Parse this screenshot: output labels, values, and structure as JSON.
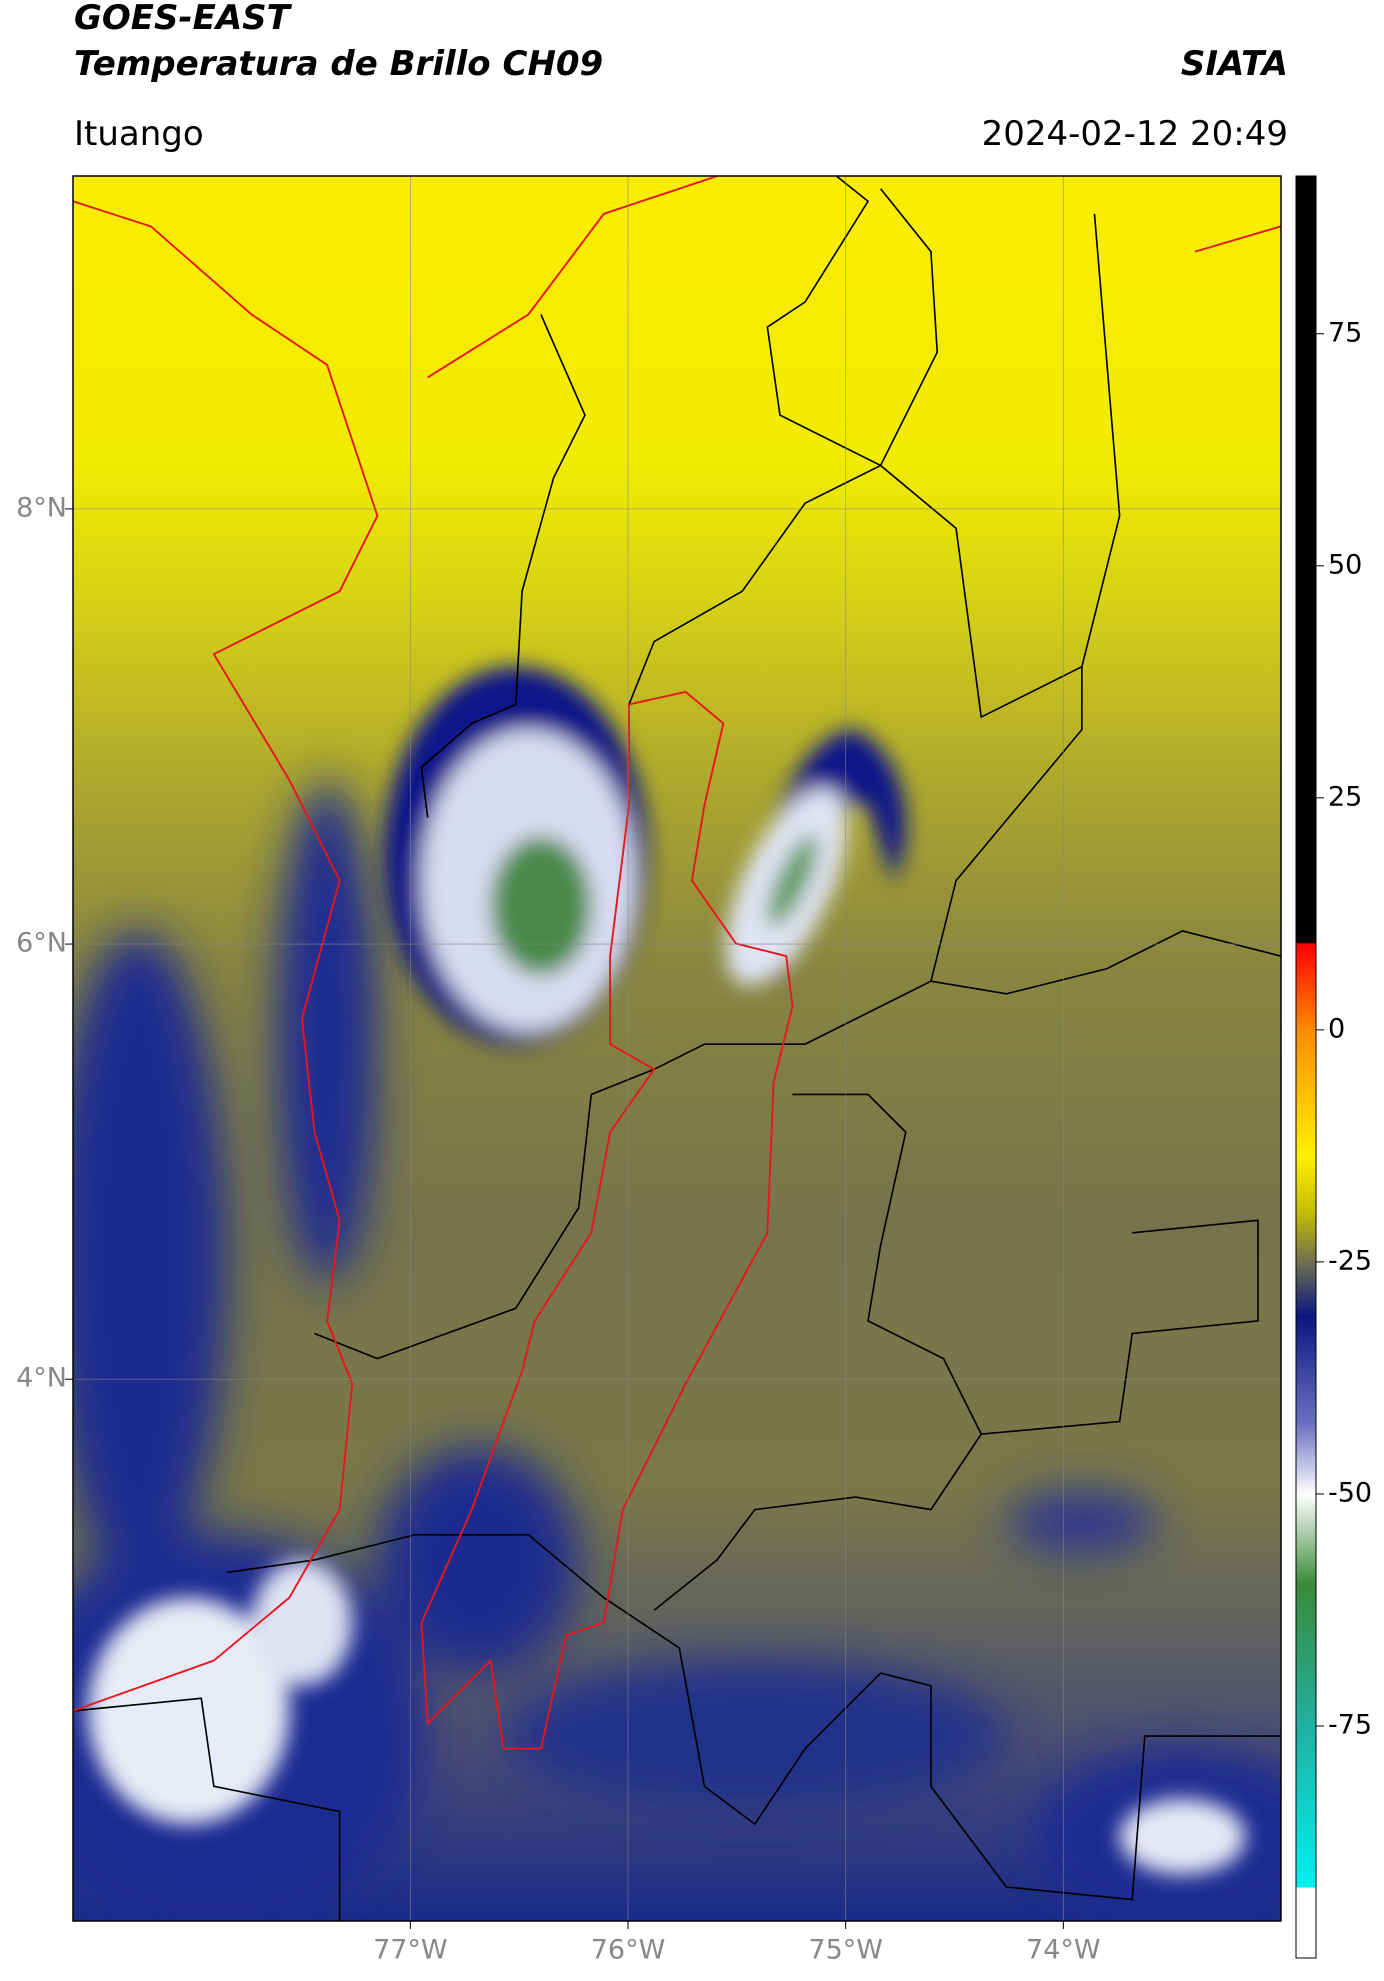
{
  "header": {
    "title": "GOES-EAST",
    "subtitle": "Temperatura de Brillo CH09",
    "brand": "SIATA",
    "location": "Ituango",
    "timestamp": "2024-02-12 20:49"
  },
  "map": {
    "xlim": [
      -78.55,
      -73.0
    ],
    "ylim": [
      1.51,
      9.53
    ],
    "xticks": [
      {
        "value": -77,
        "label": "77°W"
      },
      {
        "value": -76,
        "label": "76°W"
      },
      {
        "value": -75,
        "label": "75°W"
      },
      {
        "value": -74,
        "label": "74°W"
      }
    ],
    "yticks": [
      {
        "value": 8,
        "label": "8°N"
      },
      {
        "value": 6,
        "label": "6°N"
      },
      {
        "value": 4,
        "label": "4°N"
      }
    ]
  },
  "colorbar": {
    "lim": [
      -100,
      92
    ],
    "ticks": [
      75,
      50,
      25,
      0,
      -25,
      -50,
      -75
    ]
  }
}
